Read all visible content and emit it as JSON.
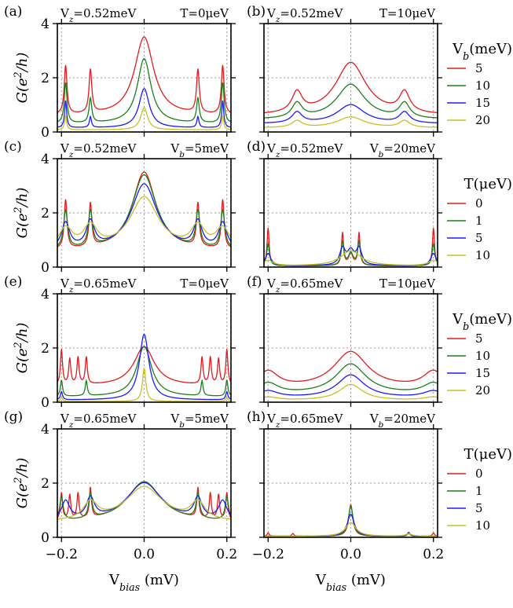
{
  "figure": {
    "xlabel": "V_bias (mV)",
    "ylabel": "G(e^2/h)",
    "colors": {
      "red": "#e41a1c",
      "green": "#1b7f1b",
      "blue": "#1a1aff",
      "yellow": "#c8c020",
      "grid": "#999999"
    }
  },
  "legends": [
    {
      "row": 0,
      "title": "V_b(meV)",
      "labels": [
        "5",
        "10",
        "15",
        "20"
      ]
    },
    {
      "row": 1,
      "title": "T(μeV)",
      "labels": [
        "0",
        "1",
        "5",
        "10"
      ]
    },
    {
      "row": 2,
      "title": "V_b(meV)",
      "labels": [
        "5",
        "10",
        "15",
        "20"
      ]
    },
    {
      "row": 3,
      "title": "T(μeV)",
      "labels": [
        "0",
        "1",
        "5",
        "10"
      ]
    }
  ],
  "chart_data": [
    {
      "type": "line",
      "panel": "(a)",
      "title_left": "V_z=0.52meV",
      "title_right": "T=0μeV",
      "xlim": [
        -0.21,
        0.21
      ],
      "ylim": [
        0,
        4
      ],
      "x_ticks": [
        -0.2,
        0.0,
        0.2
      ],
      "y_ticks": [
        0,
        2,
        4
      ],
      "grid": true,
      "series": [
        {
          "name": "5",
          "center_height": 3.5,
          "center_width": 0.028,
          "baseline": 0.6,
          "side_peaks": [
            [
              -0.19,
              1.8
            ],
            [
              -0.13,
              1.6
            ],
            [
              0.13,
              1.6
            ],
            [
              0.19,
              1.8
            ]
          ],
          "side_width": 0.004
        },
        {
          "name": "10",
          "center_height": 2.7,
          "center_width": 0.02,
          "baseline": 0.3,
          "side_peaks": [
            [
              -0.19,
              1.5
            ],
            [
              -0.13,
              0.9
            ],
            [
              0.13,
              0.9
            ],
            [
              0.19,
              1.5
            ]
          ],
          "side_width": 0.004
        },
        {
          "name": "15",
          "center_height": 1.6,
          "center_width": 0.015,
          "baseline": 0.15,
          "side_peaks": [
            [
              -0.19,
              1.0
            ],
            [
              -0.13,
              0.4
            ],
            [
              0.13,
              0.4
            ],
            [
              0.19,
              1.0
            ]
          ],
          "side_width": 0.003
        },
        {
          "name": "20",
          "center_height": 0.9,
          "center_width": 0.01,
          "baseline": 0.08,
          "side_peaks": [
            [
              -0.19,
              0.5
            ],
            [
              0.19,
              0.5
            ]
          ],
          "side_width": 0.003
        }
      ]
    },
    {
      "type": "line",
      "panel": "(b)",
      "title_left": "V_z=0.52meV",
      "title_right": "T=10μeV",
      "xlim": [
        -0.21,
        0.21
      ],
      "ylim": [
        0,
        4
      ],
      "x_ticks": [
        -0.2,
        0.0,
        0.2
      ],
      "y_ticks": [
        0,
        2,
        4
      ],
      "grid": true,
      "series": [
        {
          "name": "5",
          "center_height": 2.55,
          "center_width": 0.045,
          "baseline": 0.6,
          "side_peaks": [
            [
              -0.13,
              0.75
            ],
            [
              0.13,
              0.75
            ]
          ],
          "side_width": 0.015
        },
        {
          "name": "10",
          "center_height": 1.75,
          "center_width": 0.042,
          "baseline": 0.45,
          "side_peaks": [
            [
              -0.13,
              0.55
            ],
            [
              0.13,
              0.55
            ]
          ],
          "side_width": 0.015
        },
        {
          "name": "15",
          "center_height": 1.0,
          "center_width": 0.04,
          "baseline": 0.3,
          "side_peaks": [
            [
              -0.13,
              0.4
            ],
            [
              0.13,
              0.4
            ]
          ],
          "side_width": 0.015
        },
        {
          "name": "20",
          "center_height": 0.55,
          "center_width": 0.04,
          "baseline": 0.15,
          "side_peaks": [
            [
              -0.13,
              0.25
            ],
            [
              0.13,
              0.25
            ]
          ],
          "side_width": 0.015
        }
      ]
    },
    {
      "type": "line",
      "panel": "(c)",
      "title_left": "V_z=0.52meV",
      "title_right": "V_b=5meV",
      "xlim": [
        -0.21,
        0.21
      ],
      "ylim": [
        0,
        4
      ],
      "x_ticks": [
        -0.2,
        0.0,
        0.2
      ],
      "y_ticks": [
        0,
        2,
        4
      ],
      "grid": true,
      "series": [
        {
          "name": "0",
          "center_height": 3.5,
          "center_width": 0.035,
          "baseline": 0.6,
          "side_peaks": [
            [
              -0.19,
              1.8
            ],
            [
              -0.13,
              1.6
            ],
            [
              0.13,
              1.6
            ],
            [
              0.19,
              1.8
            ]
          ],
          "side_width": 0.004
        },
        {
          "name": "1",
          "center_height": 3.4,
          "center_width": 0.036,
          "baseline": 0.6,
          "side_peaks": [
            [
              -0.19,
              1.4
            ],
            [
              -0.13,
              1.3
            ],
            [
              0.13,
              1.3
            ],
            [
              0.19,
              1.4
            ]
          ],
          "side_width": 0.006
        },
        {
          "name": "5",
          "center_height": 3.05,
          "center_width": 0.038,
          "baseline": 0.6,
          "side_peaks": [
            [
              -0.19,
              0.95
            ],
            [
              -0.13,
              0.95
            ],
            [
              0.13,
              0.95
            ],
            [
              0.19,
              0.95
            ]
          ],
          "side_width": 0.012
        },
        {
          "name": "10",
          "center_height": 2.55,
          "center_width": 0.042,
          "baseline": 0.6,
          "side_peaks": [
            [
              -0.19,
              0.75
            ],
            [
              -0.13,
              0.8
            ],
            [
              0.13,
              0.8
            ],
            [
              0.19,
              0.75
            ]
          ],
          "side_width": 0.02
        }
      ]
    },
    {
      "type": "line",
      "panel": "(d)",
      "title_left": "V_z=0.52meV",
      "title_right": "V_b=20meV",
      "xlim": [
        -0.21,
        0.21
      ],
      "ylim": [
        0,
        4
      ],
      "x_ticks": [
        -0.2,
        0.0,
        0.2
      ],
      "y_ticks": [
        0,
        2,
        4
      ],
      "grid": true,
      "series": [
        {
          "name": "0",
          "center_height": 0.5,
          "center_width": 0.006,
          "baseline": 0.05,
          "side_peaks": [
            [
              -0.2,
              1.4
            ],
            [
              -0.02,
              1.2
            ],
            [
              0.02,
              1.2
            ],
            [
              0.2,
              1.4
            ]
          ],
          "side_width": 0.003
        },
        {
          "name": "1",
          "center_height": 0.5,
          "center_width": 0.007,
          "baseline": 0.05,
          "side_peaks": [
            [
              -0.2,
              0.8
            ],
            [
              -0.02,
              0.85
            ],
            [
              0.02,
              0.85
            ],
            [
              0.2,
              0.8
            ]
          ],
          "side_width": 0.004
        },
        {
          "name": "5",
          "center_height": 0.55,
          "center_width": 0.01,
          "baseline": 0.05,
          "side_peaks": [
            [
              -0.2,
              0.45
            ],
            [
              -0.02,
              0.6
            ],
            [
              0.02,
              0.6
            ],
            [
              0.2,
              0.45
            ]
          ],
          "side_width": 0.008
        },
        {
          "name": "10",
          "center_height": 0.6,
          "center_width": 0.03,
          "baseline": 0.04,
          "side_peaks": [
            [
              -0.2,
              0.2
            ],
            [
              0.2,
              0.2
            ]
          ],
          "side_width": 0.015
        }
      ]
    },
    {
      "type": "line",
      "panel": "(e)",
      "title_left": "V_z=0.65meV",
      "title_right": "T=0μeV",
      "xlim": [
        -0.21,
        0.21
      ],
      "ylim": [
        0,
        4
      ],
      "x_ticks": [
        -0.2,
        0.0,
        0.2
      ],
      "y_ticks": [
        0,
        2,
        4
      ],
      "grid": true,
      "series": [
        {
          "name": "5",
          "center_height": 2.05,
          "center_width": 0.03,
          "baseline": 0.6,
          "side_peaks": [
            [
              -0.2,
              1.3
            ],
            [
              -0.18,
              0.95
            ],
            [
              -0.16,
              1.0
            ],
            [
              -0.14,
              1.0
            ],
            [
              0.14,
              1.0
            ],
            [
              0.16,
              1.0
            ],
            [
              0.18,
              0.95
            ],
            [
              0.2,
              1.3
            ]
          ],
          "side_width": 0.003
        },
        {
          "name": "10",
          "center_height": 2.05,
          "center_width": 0.022,
          "baseline": 0.2,
          "side_peaks": [
            [
              -0.2,
              0.6
            ],
            [
              -0.14,
              0.55
            ],
            [
              0.14,
              0.55
            ],
            [
              0.2,
              0.6
            ]
          ],
          "side_width": 0.003
        },
        {
          "name": "15",
          "center_height": 2.5,
          "center_width": 0.014,
          "baseline": 0.08,
          "side_peaks": [
            [
              -0.2,
              0.3
            ],
            [
              0.2,
              0.3
            ]
          ],
          "side_width": 0.003
        },
        {
          "name": "20",
          "center_height": 1.25,
          "center_width": 0.005,
          "baseline": 0.03,
          "side_peaks": [
            [
              -0.2,
              0.15
            ],
            [
              0.2,
              0.15
            ]
          ],
          "side_width": 0.003
        }
      ]
    },
    {
      "type": "line",
      "panel": "(f)",
      "title_left": "V_z=0.65meV",
      "title_right": "T=10μeV",
      "xlim": [
        -0.21,
        0.21
      ],
      "ylim": [
        0,
        4
      ],
      "x_ticks": [
        -0.2,
        0.0,
        0.2
      ],
      "y_ticks": [
        0,
        2,
        4
      ],
      "grid": true,
      "series": [
        {
          "name": "5",
          "center_height": 1.85,
          "center_width": 0.05,
          "baseline": 0.5,
          "side_peaks": [
            [
              -0.2,
              0.6
            ],
            [
              0.2,
              0.6
            ]
          ],
          "side_width": 0.03
        },
        {
          "name": "10",
          "center_height": 1.4,
          "center_width": 0.045,
          "baseline": 0.28,
          "side_peaks": [
            [
              -0.2,
              0.4
            ],
            [
              0.2,
              0.4
            ]
          ],
          "side_width": 0.03
        },
        {
          "name": "15",
          "center_height": 1.0,
          "center_width": 0.04,
          "baseline": 0.15,
          "side_peaks": [
            [
              -0.2,
              0.25
            ],
            [
              0.2,
              0.25
            ]
          ],
          "side_width": 0.03
        },
        {
          "name": "20",
          "center_height": 0.65,
          "center_width": 0.035,
          "baseline": 0.06,
          "side_peaks": [
            [
              -0.2,
              0.12
            ],
            [
              0.2,
              0.12
            ]
          ],
          "side_width": 0.03
        }
      ]
    },
    {
      "type": "line",
      "panel": "(g)",
      "title_left": "V_z=0.65meV",
      "title_right": "V_b=5meV",
      "xlim": [
        -0.21,
        0.21
      ],
      "ylim": [
        0,
        4
      ],
      "x_ticks": [
        -0.2,
        0.0,
        0.2
      ],
      "y_ticks": [
        0,
        2,
        4
      ],
      "grid": true,
      "series": [
        {
          "name": "0",
          "center_height": 2.05,
          "center_width": 0.05,
          "baseline": 0.55,
          "side_peaks": [
            [
              -0.2,
              1.0
            ],
            [
              -0.18,
              0.9
            ],
            [
              -0.16,
              0.95
            ],
            [
              -0.13,
              1.1
            ],
            [
              0.13,
              1.1
            ],
            [
              0.16,
              0.95
            ],
            [
              0.18,
              0.9
            ],
            [
              0.2,
              1.0
            ]
          ],
          "side_width": 0.003
        },
        {
          "name": "1",
          "center_height": 2.05,
          "center_width": 0.05,
          "baseline": 0.55,
          "side_peaks": [
            [
              -0.2,
              0.85
            ],
            [
              -0.13,
              0.9
            ],
            [
              0.13,
              0.9
            ],
            [
              0.2,
              0.85
            ]
          ],
          "side_width": 0.005
        },
        {
          "name": "5",
          "center_height": 2.0,
          "center_width": 0.052,
          "baseline": 0.55,
          "side_peaks": [
            [
              -0.19,
              0.7
            ],
            [
              -0.13,
              0.75
            ],
            [
              0.13,
              0.75
            ],
            [
              0.19,
              0.7
            ]
          ],
          "side_width": 0.012
        },
        {
          "name": "10",
          "center_height": 1.85,
          "center_width": 0.055,
          "baseline": 0.55,
          "side_peaks": [
            [
              -0.13,
              0.65
            ],
            [
              0.13,
              0.65
            ]
          ],
          "side_width": 0.02
        }
      ]
    },
    {
      "type": "line",
      "panel": "(h)",
      "title_left": "V_z=0.65meV",
      "title_right": "V_b=20meV",
      "xlim": [
        -0.21,
        0.21
      ],
      "ylim": [
        0,
        4
      ],
      "x_ticks": [
        -0.2,
        0.0,
        0.2
      ],
      "y_ticks": [
        0,
        2,
        4
      ],
      "grid": true,
      "series": [
        {
          "name": "0",
          "center_height": 1.2,
          "center_width": 0.006,
          "baseline": 0.04,
          "side_peaks": [
            [
              -0.2,
              0.12
            ],
            [
              -0.14,
              0.1
            ],
            [
              0.14,
              0.15
            ],
            [
              0.2,
              0.12
            ]
          ],
          "side_width": 0.003
        },
        {
          "name": "1",
          "center_height": 1.15,
          "center_width": 0.007,
          "baseline": 0.04,
          "side_peaks": [
            [
              0.14,
              0.12
            ]
          ],
          "side_width": 0.004
        },
        {
          "name": "5",
          "center_height": 0.85,
          "center_width": 0.01,
          "baseline": 0.04,
          "side_peaks": [
            [
              0.14,
              0.1
            ]
          ],
          "side_width": 0.006
        },
        {
          "name": "10",
          "center_height": 0.55,
          "center_width": 0.015,
          "baseline": 0.04,
          "side_peaks": [
            [
              0.14,
              0.08
            ]
          ],
          "side_width": 0.01
        }
      ]
    }
  ]
}
